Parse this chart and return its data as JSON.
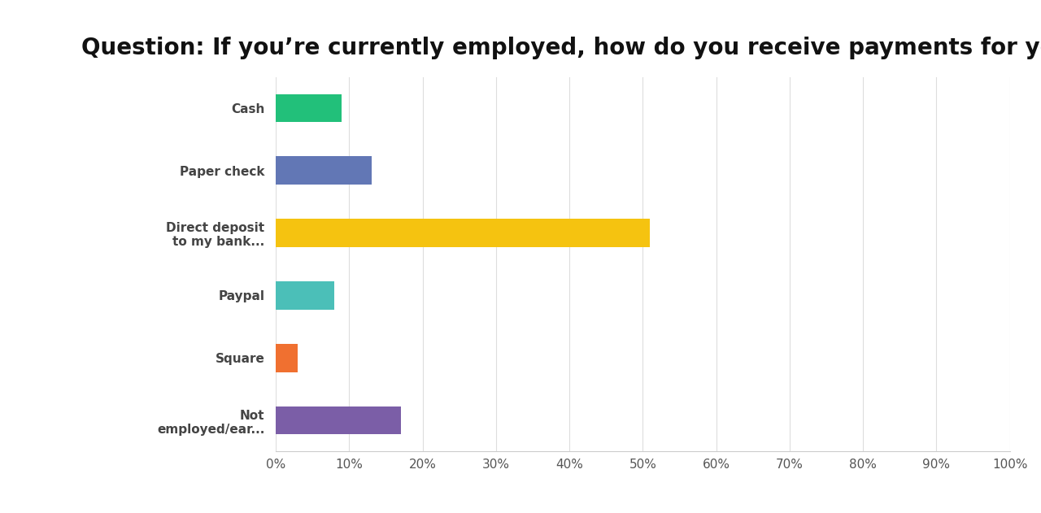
{
  "title": "Question: If you’re currently employed, how do you receive payments for your work?",
  "categories": [
    "Cash",
    "Paper check",
    "Direct deposit\nto my bank...",
    "Paypal",
    "Square",
    "Not\nemployed/ear..."
  ],
  "values": [
    9,
    13,
    51,
    8,
    3,
    17
  ],
  "bar_colors": [
    "#22c07a",
    "#6277b5",
    "#f5c310",
    "#4bbfb8",
    "#f07030",
    "#7b5ea7"
  ],
  "xlim": [
    0,
    100
  ],
  "xtick_values": [
    0,
    10,
    20,
    30,
    40,
    50,
    60,
    70,
    80,
    90,
    100
  ],
  "background_color": "#ffffff",
  "title_fontsize": 20,
  "label_fontsize": 11,
  "tick_fontsize": 11
}
